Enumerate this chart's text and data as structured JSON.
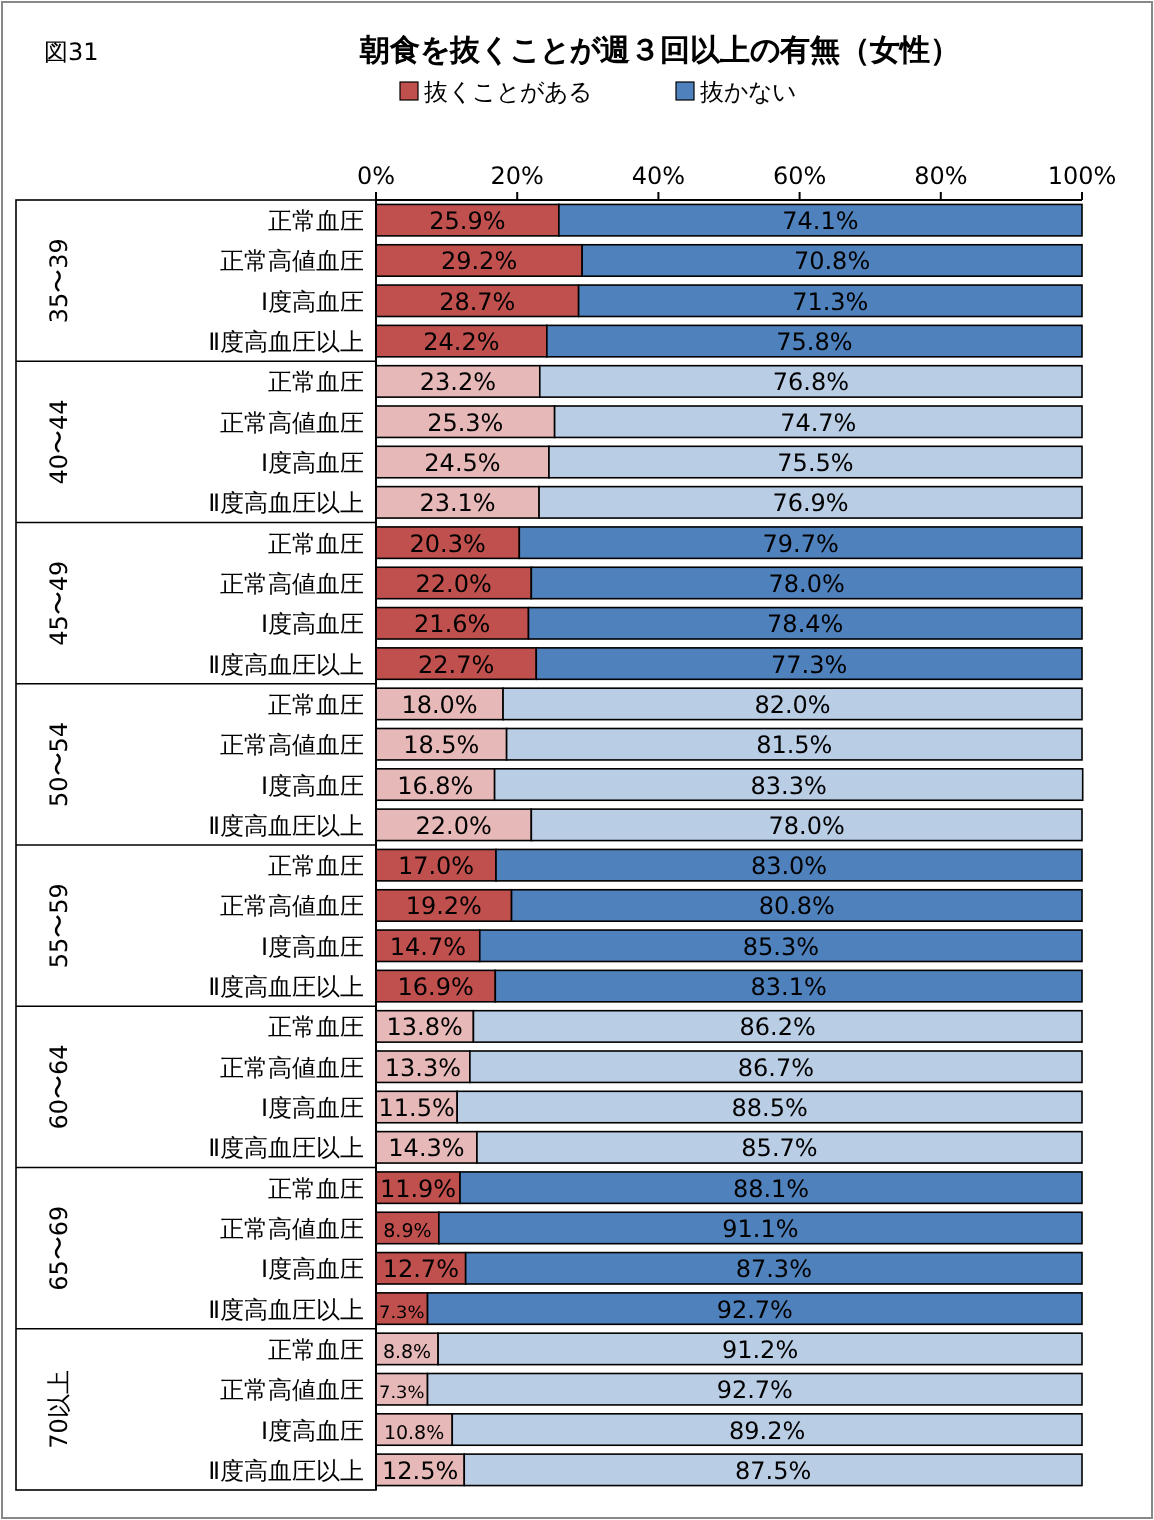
{
  "chart_data": {
    "type": "bar",
    "orientation": "horizontal",
    "stacked": true,
    "title": "朝食を抜くことが週３回以上の有無（女性）",
    "annotations": [
      "図31",
      "35〜39",
      "40〜44",
      "45〜49",
      "50〜54",
      "55〜59",
      "60〜64",
      "65〜69",
      "70以上"
    ],
    "categories": [
      "正常血圧",
      "正常高値血圧",
      "Ⅰ度高血圧",
      "Ⅱ度高血圧以上",
      "正常血圧",
      "正常高値血圧",
      "Ⅰ度高血圧",
      "Ⅱ度高血圧以上",
      "正常血圧",
      "正常高値血圧",
      "Ⅰ度高血圧",
      "Ⅱ度高血圧以上",
      "正常血圧",
      "正常高値血圧",
      "Ⅰ度高血圧",
      "Ⅱ度高血圧以上",
      "正常血圧",
      "正常高値血圧",
      "Ⅰ度高血圧",
      "Ⅱ度高血圧以上",
      "正常血圧",
      "正常高値血圧",
      "Ⅰ度高血圧",
      "Ⅱ度高血圧以上",
      "正常血圧",
      "正常高値血圧",
      "Ⅰ度高血圧",
      "Ⅱ度高血圧以上",
      "正常血圧",
      "正常高値血圧",
      "Ⅰ度高血圧",
      "Ⅱ度高血圧以上"
    ],
    "xlim": [
      0,
      100
    ],
    "xticks": [
      {
        "value": 0,
        "label": "0%"
      },
      {
        "value": 20,
        "label": "20%"
      },
      {
        "value": 40,
        "label": "40%"
      },
      {
        "value": 60,
        "label": "60%"
      },
      {
        "value": 80,
        "label": "80%"
      },
      {
        "value": 100,
        "label": "100%"
      }
    ],
    "legend": "top",
    "grid": false,
    "series": [
      {
        "name": "抜くことがある",
        "color": "#c0504d",
        "colors": [
          "#c0504d",
          "#c0504d",
          "#c0504d",
          "#c0504d",
          "#e6b9b8",
          "#e6b9b8",
          "#e6b9b8",
          "#e6b9b8",
          "#c0504d",
          "#c0504d",
          "#c0504d",
          "#c0504d",
          "#e6b9b8",
          "#e6b9b8",
          "#e6b9b8",
          "#e6b9b8",
          "#c0504d",
          "#c0504d",
          "#c0504d",
          "#c0504d",
          "#e6b9b8",
          "#e6b9b8",
          "#e6b9b8",
          "#e6b9b8",
          "#c0504d",
          "#c0504d",
          "#c0504d",
          "#c0504d",
          "#e6b9b8",
          "#e6b9b8",
          "#e6b9b8",
          "#e6b9b8"
        ],
        "values": [
          25.9,
          29.2,
          28.7,
          24.2,
          23.2,
          25.3,
          24.5,
          23.1,
          20.3,
          22.0,
          21.6,
          22.7,
          18.0,
          18.5,
          16.8,
          22.0,
          17.0,
          19.2,
          14.7,
          16.9,
          13.8,
          13.3,
          11.5,
          14.3,
          11.9,
          8.9,
          12.7,
          7.3,
          8.8,
          7.3,
          10.8,
          12.5
        ],
        "value_labels": [
          "25.9%",
          "29.2%",
          "28.7%",
          "24.2%",
          "23.2%",
          "25.3%",
          "24.5%",
          "23.1%",
          "20.3%",
          "22.0%",
          "21.6%",
          "22.7%",
          "18.0%",
          "18.5%",
          "16.8%",
          "22.0%",
          "17.0%",
          "19.2%",
          "14.7%",
          "16.9%",
          "13.8%",
          "13.3%",
          "11.5%",
          "14.3%",
          "11.9%",
          "8.9%",
          "12.7%",
          "7.3%",
          "8.8%",
          "7.3%",
          "10.8%",
          "12.5%"
        ]
      },
      {
        "name": "抜かない",
        "color": "#4f81bd",
        "colors": [
          "#4f81bd",
          "#4f81bd",
          "#4f81bd",
          "#4f81bd",
          "#b9cde5",
          "#b9cde5",
          "#b9cde5",
          "#b9cde5",
          "#4f81bd",
          "#4f81bd",
          "#4f81bd",
          "#4f81bd",
          "#b9cde5",
          "#b9cde5",
          "#b9cde5",
          "#b9cde5",
          "#4f81bd",
          "#4f81bd",
          "#4f81bd",
          "#4f81bd",
          "#b9cde5",
          "#b9cde5",
          "#b9cde5",
          "#b9cde5",
          "#4f81bd",
          "#4f81bd",
          "#4f81bd",
          "#4f81bd",
          "#b9cde5",
          "#b9cde5",
          "#b9cde5",
          "#b9cde5"
        ],
        "values": [
          74.1,
          70.8,
          71.3,
          75.8,
          76.8,
          74.7,
          75.5,
          76.9,
          79.7,
          78.0,
          78.4,
          77.3,
          82.0,
          81.5,
          83.3,
          78.0,
          83.0,
          80.8,
          85.3,
          83.1,
          86.2,
          86.7,
          88.5,
          85.7,
          88.1,
          91.1,
          87.3,
          92.7,
          91.2,
          92.7,
          89.2,
          87.5
        ],
        "value_labels": [
          "74.1%",
          "70.8%",
          "71.3%",
          "75.8%",
          "76.8%",
          "74.7%",
          "75.5%",
          "76.9%",
          "79.7%",
          "78.0%",
          "78.4%",
          "77.3%",
          "82.0%",
          "81.5%",
          "83.3%",
          "78.0%",
          "83.0%",
          "80.8%",
          "85.3%",
          "83.1%",
          "86.2%",
          "86.7%",
          "88.5%",
          "85.7%",
          "88.1%",
          "91.1%",
          "87.3%",
          "92.7%",
          "91.2%",
          "92.7%",
          "89.2%",
          "87.5%"
        ]
      }
    ]
  }
}
